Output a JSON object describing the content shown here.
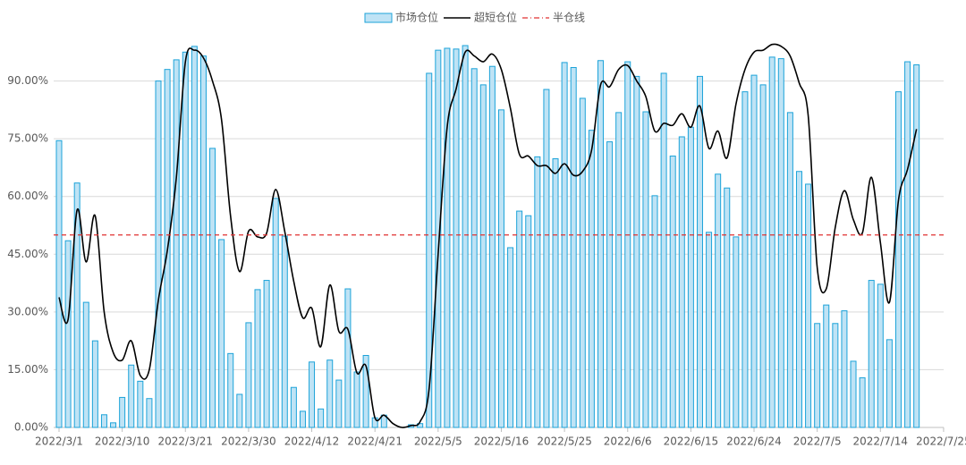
{
  "chart_data": {
    "type": "bar_line",
    "legend": "top",
    "grid": true,
    "categories": [
      "2022/3/1",
      null,
      null,
      null,
      null,
      null,
      null,
      "2022/3/10",
      null,
      null,
      null,
      null,
      null,
      null,
      "2022/3/21",
      null,
      null,
      null,
      null,
      null,
      null,
      "2022/3/30",
      null,
      null,
      null,
      null,
      null,
      null,
      "2022/4/12",
      null,
      null,
      null,
      null,
      null,
      null,
      "2022/4/21",
      null,
      null,
      null,
      null,
      null,
      null,
      "2022/5/5",
      null,
      null,
      null,
      null,
      null,
      null,
      "2022/5/16",
      null,
      null,
      null,
      null,
      null,
      null,
      "2022/5/25",
      null,
      null,
      null,
      null,
      null,
      null,
      "2022/6/6",
      null,
      null,
      null,
      null,
      null,
      null,
      "2022/6/15",
      null,
      null,
      null,
      null,
      null,
      null,
      "2022/6/24",
      null,
      null,
      null,
      null,
      null,
      null,
      "2022/7/5",
      null,
      null,
      null,
      null,
      null,
      null,
      "2022/7/14",
      null,
      null,
      null,
      null,
      null,
      null,
      "2022/7/25"
    ],
    "series": [
      {
        "name": "市场仓位",
        "kind": "bar",
        "color": "#bfe3f5",
        "edge": "#1ca3d9",
        "values": [
          74.5,
          48.5,
          63.5,
          32.5,
          22.5,
          3.3,
          1.2,
          7.8,
          16.2,
          12,
          7.5,
          90,
          93,
          95.5,
          97.5,
          99,
          96.5,
          72.5,
          48.8,
          19.2,
          8.6,
          27.2,
          35.8,
          38.2,
          59.5,
          49.7,
          10.4,
          4.2,
          17,
          4.8,
          17.5,
          12.3,
          36,
          14.4,
          18.7,
          2.5,
          3.2,
          0,
          0,
          0.7,
          1,
          92,
          98,
          98.5,
          98.3,
          99.2,
          93.2,
          89,
          93.8,
          82.5,
          46.7,
          56.2,
          55,
          70.3,
          87.8,
          69.8,
          94.8,
          93.5,
          85.5,
          77.2,
          95.3,
          74.2,
          81.8,
          95,
          91.2,
          82,
          60.2,
          92,
          70.5,
          75.5,
          78,
          91.2,
          50.7,
          65.8,
          62.2,
          49.5,
          87.2,
          91.5,
          89,
          96.2,
          95.8,
          81.8,
          66.5,
          63.2,
          27,
          31.8,
          27,
          30.3,
          17.2,
          12.9,
          38.2,
          37.2,
          22.8,
          87.2,
          95,
          94.2,
          null,
          null,
          null
        ]
      },
      {
        "name": "超短仓位",
        "kind": "line",
        "color": "#000000",
        "values": [
          33.8,
          28,
          56.5,
          43,
          55,
          30,
          19.5,
          17.5,
          22.5,
          13.5,
          15,
          33,
          46,
          65,
          95,
          98,
          96,
          90,
          80,
          55,
          40.5,
          51,
          49.5,
          50.5,
          61.8,
          51,
          38,
          28.5,
          31,
          21,
          37,
          25,
          25.5,
          14.2,
          16,
          2.5,
          3.2,
          1,
          0,
          0.5,
          1.5,
          10,
          45,
          78,
          88,
          97.5,
          96.5,
          95,
          97,
          93,
          83,
          71,
          70.5,
          68,
          68,
          66,
          68.5,
          65.5,
          66.5,
          72,
          89,
          88.5,
          93,
          94,
          90,
          86,
          77,
          79,
          78.5,
          81.5,
          78,
          83.5,
          72.5,
          77,
          70,
          84,
          93,
          97.5,
          98,
          99.5,
          99,
          96.5,
          89.5,
          81,
          41.5,
          36,
          52,
          61.5,
          54,
          50.5,
          65,
          48,
          32.5,
          59,
          67,
          77.5,
          null,
          null,
          null
        ]
      }
    ],
    "reference_line": {
      "name": "半仓线",
      "value": 50,
      "color": "#e03030"
    },
    "ylim": [
      0,
      105
    ],
    "yticks": [
      {
        "value": 0,
        "label": "0.00%"
      },
      {
        "value": 15,
        "label": "15.00%"
      },
      {
        "value": 30,
        "label": "30.00%"
      },
      {
        "value": 45,
        "label": "45.00%"
      },
      {
        "value": 60,
        "label": "60.00%"
      },
      {
        "value": 75,
        "label": "75.00%"
      },
      {
        "value": 90,
        "label": "90.00%"
      }
    ]
  }
}
